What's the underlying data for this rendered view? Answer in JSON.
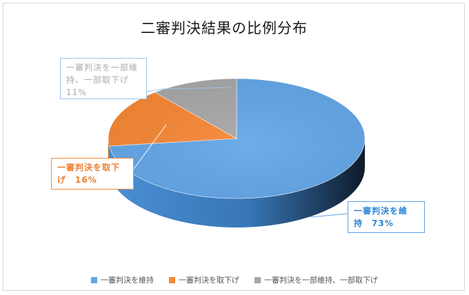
{
  "chart_data": {
    "type": "pie",
    "title": "二審判決結果の比例分布",
    "slices": [
      {
        "label": "一審判決を維持",
        "value": 73,
        "value_label": "73%",
        "color": "#62a5e6"
      },
      {
        "label": "一審判決を取下げ",
        "value": 16,
        "value_label": "16%",
        "color": "#f58634"
      },
      {
        "label": "一審判決を一部維持、一部取下げ",
        "value": 11,
        "value_label": "11%",
        "color": "#a6a6a6"
      }
    ],
    "callouts": [
      {
        "line1": "一審判決を維",
        "line2": "持　73%"
      },
      {
        "line1": "一審判決を取下",
        "line2": "げ　16%"
      },
      {
        "line1": "一審判決を一部維",
        "line2": "持、一部取下げ",
        "line3": "11%"
      }
    ],
    "legend_position": "bottom",
    "style": "3d"
  }
}
